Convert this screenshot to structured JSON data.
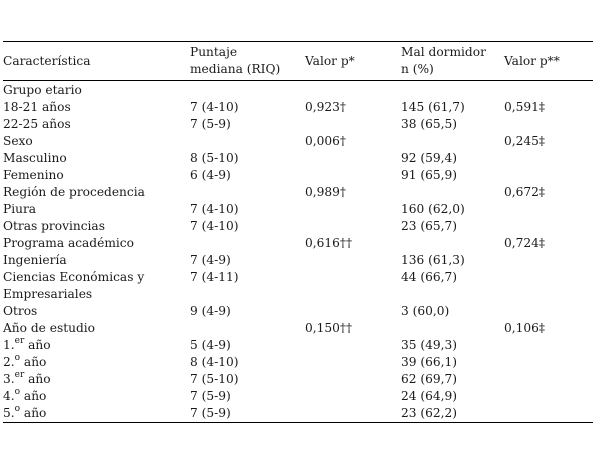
{
  "header": {
    "col0": "Característica",
    "col1_line1": "Puntaje",
    "col1_line2": "mediana (RIQ)",
    "col2": "Valor p*",
    "col3_line1": "Mal dormidor",
    "col3_line2": "n (%)",
    "col4": "Valor p**"
  },
  "rows": [
    {
      "label": "Grupo etario",
      "c1": "",
      "c2": "",
      "c3": "",
      "c4": ""
    },
    {
      "label": "18-21 años",
      "c1": "7 (4-10)",
      "c2": "0,923†",
      "c3": "145 (61,7)",
      "c4": "0,591‡"
    },
    {
      "label": "22-25 años",
      "c1": "7 (5-9)",
      "c2": "",
      "c3": "38 (65,5)",
      "c4": ""
    },
    {
      "label": "Sexo",
      "c1": "",
      "c2": "0,006†",
      "c3": "",
      "c4": "0,245‡"
    },
    {
      "label": "Masculino",
      "c1": "8 (5-10)",
      "c2": "",
      "c3": "92 (59,4)",
      "c4": ""
    },
    {
      "label": "Femenino",
      "c1": "6 (4-9)",
      "c2": "",
      "c3": "91 (65,9)",
      "c4": ""
    },
    {
      "label": "Región de procedencia",
      "c1": "",
      "c2": "0,989†",
      "c3": "",
      "c4": "0,672‡"
    },
    {
      "label": "Piura",
      "c1": "7 (4-10)",
      "c2": "",
      "c3": "160 (62,0)",
      "c4": ""
    },
    {
      "label": "Otras provincias",
      "c1": "7 (4-10)",
      "c2": "",
      "c3": "23 (65,7)",
      "c4": ""
    },
    {
      "label": "Programa académico",
      "c1": "",
      "c2": "0,616††",
      "c3": "",
      "c4": "0,724‡"
    },
    {
      "label": "Ingeniería",
      "c1": "7 (4-9)",
      "c2": "",
      "c3": "136 (61,3)",
      "c4": ""
    },
    {
      "label": "Ciencias Económicas y Empresariales",
      "c1": "7 (4-11)",
      "c2": "",
      "c3": "44 (66,7)",
      "c4": ""
    },
    {
      "label": "Otros",
      "c1": "9 (4-9)",
      "c2": "",
      "c3": "3 (60,0)",
      "c4": ""
    },
    {
      "label": "Año de estudio",
      "c1": "",
      "c2": "0,150††",
      "c3": "",
      "c4": "0,106‡"
    }
  ],
  "year_rows": [
    {
      "num": "1.",
      "sup": "er",
      "word": " año",
      "c1": "5 (4-9)",
      "c3": "35 (49,3)"
    },
    {
      "num": "2.",
      "sup": "o",
      "word": " año",
      "c1": "8 (4-10)",
      "c3": "39 (66,1)"
    },
    {
      "num": "3.",
      "sup": "er",
      "word": " año",
      "c1": "7 (5-10)",
      "c3": "62 (69,7)"
    },
    {
      "num": "4.",
      "sup": "o",
      "word": " año",
      "c1": "7 (5-9)",
      "c3": "24 (64,9)"
    },
    {
      "num": "5.",
      "sup": "o",
      "word": " año",
      "c1": "7 (5-9)",
      "c3": "23 (62,2)"
    }
  ]
}
